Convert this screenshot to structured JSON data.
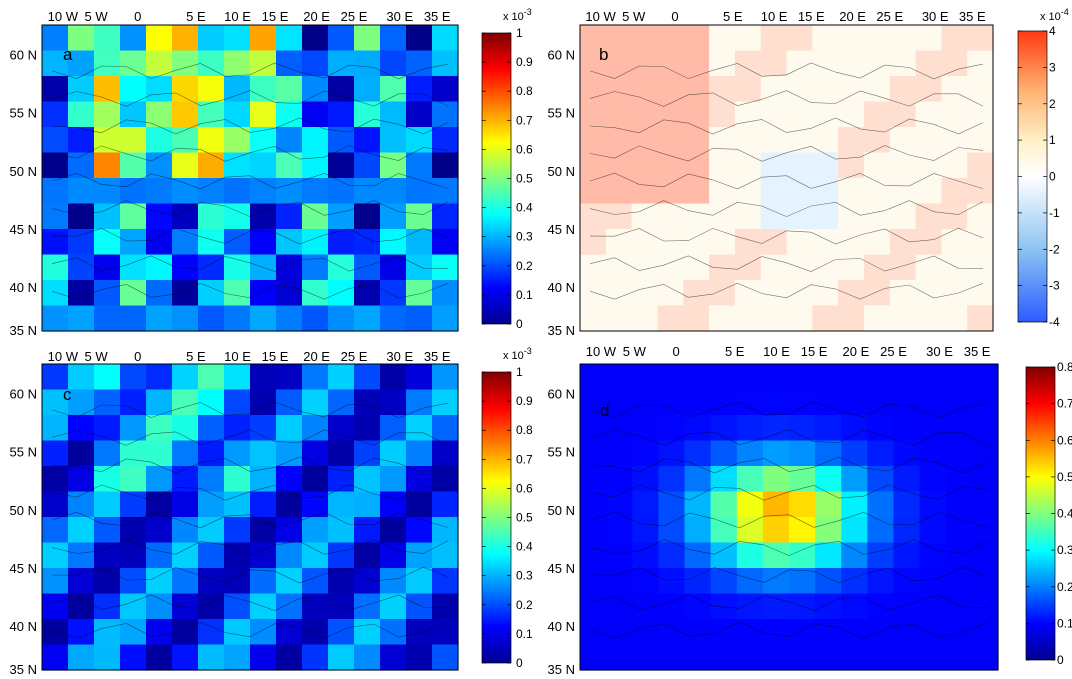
{
  "panels": [
    {
      "letter": "a",
      "lon_labels": [
        "10 W",
        "5 W",
        "0",
        "5 E",
        "10 E",
        "15 E",
        "20 E",
        "25 E",
        "30 E",
        "35 E"
      ],
      "lat_labels": [
        "60 N",
        "55 N",
        "50 N",
        "45 N",
        "40 N",
        "35 N"
      ],
      "colorbar": {
        "ticks": [
          "1",
          "0.9",
          "0.8",
          "0.7",
          "0.6",
          "0.5",
          "0.4",
          "0.3",
          "0.2",
          "0.1",
          "0"
        ],
        "exponent_label": "x 10",
        "exponent_power": "-3",
        "colormap": "jet"
      }
    },
    {
      "letter": "b",
      "lon_labels": [
        "10 W",
        "5 W",
        "0",
        "5 E",
        "10 E",
        "15 E",
        "20 E",
        "25 E",
        "30 E",
        "35 E"
      ],
      "lat_labels": [
        "60 N",
        "55 N",
        "50 N",
        "45 N",
        "40 N",
        "35 N"
      ],
      "colorbar": {
        "ticks": [
          "4",
          "3",
          "2",
          "1",
          "0",
          "-1",
          "-2",
          "-3",
          "-4"
        ],
        "exponent_label": "x 10",
        "exponent_power": "-4",
        "colormap": "diverging blue-white-red"
      }
    },
    {
      "letter": "c",
      "lon_labels": [
        "10 W",
        "5 W",
        "0",
        "5 E",
        "10 E",
        "15 E",
        "20 E",
        "25 E",
        "30 E",
        "35 E"
      ],
      "lat_labels": [
        "60 N",
        "55 N",
        "50 N",
        "45 N",
        "40 N",
        "35 N"
      ],
      "colorbar": {
        "ticks": [
          "1",
          "0.9",
          "0.8",
          "0.7",
          "0.6",
          "0.5",
          "0.4",
          "0.3",
          "0.2",
          "0.1",
          "0"
        ],
        "exponent_label": "x 10",
        "exponent_power": "-3",
        "colormap": "jet"
      }
    },
    {
      "letter": "d",
      "lon_labels": [
        "10 W",
        "5 W",
        "0",
        "5 E",
        "10 E",
        "15 E",
        "20 E",
        "25 E",
        "30 E",
        "35 E"
      ],
      "lat_labels": [
        "60 N",
        "55 N",
        "50 N",
        "45 N",
        "40 N",
        "35 N"
      ],
      "colorbar": {
        "ticks": [
          "0.8",
          "0.7",
          "0.6",
          "0.5",
          "0.4",
          "0.3",
          "0.2",
          "0.1",
          "0"
        ],
        "exponent_label": "",
        "exponent_power": "",
        "colormap": "jet"
      }
    }
  ]
}
